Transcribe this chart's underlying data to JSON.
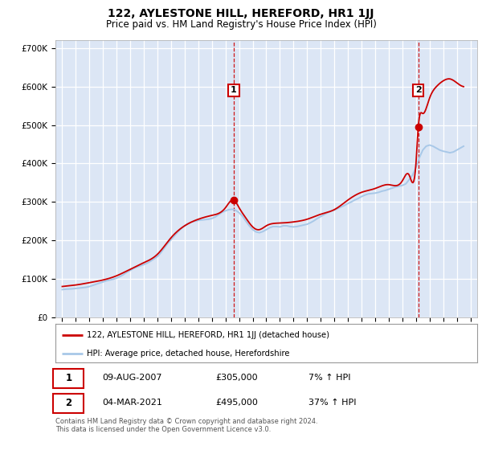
{
  "title": "122, AYLESTONE HILL, HEREFORD, HR1 1JJ",
  "subtitle": "Price paid vs. HM Land Registry's House Price Index (HPI)",
  "legend_label_red": "122, AYLESTONE HILL, HEREFORD, HR1 1JJ (detached house)",
  "legend_label_blue": "HPI: Average price, detached house, Herefordshire",
  "footnote": "Contains HM Land Registry data © Crown copyright and database right 2024.\nThis data is licensed under the Open Government Licence v3.0.",
  "sale1_label": "1",
  "sale1_date": "09-AUG-2007",
  "sale1_price": "£305,000",
  "sale1_hpi": "7% ↑ HPI",
  "sale2_label": "2",
  "sale2_date": "04-MAR-2021",
  "sale2_price": "£495,000",
  "sale2_hpi": "37% ↑ HPI",
  "sale1_x": 2007.6,
  "sale1_y": 305000,
  "sale2_x": 2021.17,
  "sale2_y": 495000,
  "ylim": [
    0,
    720000
  ],
  "xlim": [
    1994.5,
    2025.5
  ],
  "yticks": [
    0,
    100000,
    200000,
    300000,
    400000,
    500000,
    600000,
    700000
  ],
  "ytick_labels": [
    "£0",
    "£100K",
    "£200K",
    "£300K",
    "£400K",
    "£500K",
    "£600K",
    "£700K"
  ],
  "xticks": [
    1995,
    1996,
    1997,
    1998,
    1999,
    2000,
    2001,
    2002,
    2003,
    2004,
    2005,
    2006,
    2007,
    2008,
    2009,
    2010,
    2011,
    2012,
    2013,
    2014,
    2015,
    2016,
    2017,
    2018,
    2019,
    2020,
    2021,
    2022,
    2023,
    2024,
    2025
  ],
  "plot_bg_color": "#dce6f5",
  "red_color": "#cc0000",
  "blue_color": "#a8c8e8",
  "vline_color": "#cc0000",
  "marker_color": "#cc0000",
  "hpi_years": [
    1995.0,
    1995.25,
    1995.5,
    1995.75,
    1996.0,
    1996.25,
    1996.5,
    1996.75,
    1997.0,
    1997.25,
    1997.5,
    1997.75,
    1998.0,
    1998.25,
    1998.5,
    1998.75,
    1999.0,
    1999.25,
    1999.5,
    1999.75,
    2000.0,
    2000.25,
    2000.5,
    2000.75,
    2001.0,
    2001.25,
    2001.5,
    2001.75,
    2002.0,
    2002.25,
    2002.5,
    2002.75,
    2003.0,
    2003.25,
    2003.5,
    2003.75,
    2004.0,
    2004.25,
    2004.5,
    2004.75,
    2005.0,
    2005.25,
    2005.5,
    2005.75,
    2006.0,
    2006.25,
    2006.5,
    2006.75,
    2007.0,
    2007.25,
    2007.5,
    2007.75,
    2008.0,
    2008.25,
    2008.5,
    2008.75,
    2009.0,
    2009.25,
    2009.5,
    2009.75,
    2010.0,
    2010.25,
    2010.5,
    2010.75,
    2011.0,
    2011.25,
    2011.5,
    2011.75,
    2012.0,
    2012.25,
    2012.5,
    2012.75,
    2013.0,
    2013.25,
    2013.5,
    2013.75,
    2014.0,
    2014.25,
    2014.5,
    2014.75,
    2015.0,
    2015.25,
    2015.5,
    2015.75,
    2016.0,
    2016.25,
    2016.5,
    2016.75,
    2017.0,
    2017.25,
    2017.5,
    2017.75,
    2018.0,
    2018.25,
    2018.5,
    2018.75,
    2019.0,
    2019.25,
    2019.5,
    2019.75,
    2020.0,
    2020.25,
    2020.5,
    2020.75,
    2021.0,
    2021.25,
    2021.5,
    2021.75,
    2022.0,
    2022.25,
    2022.5,
    2022.75,
    2023.0,
    2023.25,
    2023.5,
    2023.75,
    2024.0,
    2024.25,
    2024.5
  ],
  "hpi_vals": [
    72000,
    73000,
    73500,
    74000,
    75000,
    76000,
    77000,
    78000,
    80000,
    83000,
    86000,
    89000,
    92000,
    95000,
    97000,
    99000,
    102000,
    106000,
    111000,
    117000,
    122000,
    127000,
    131000,
    134000,
    137000,
    141000,
    146000,
    152000,
    158000,
    168000,
    180000,
    192000,
    202000,
    212000,
    222000,
    231000,
    238000,
    244000,
    248000,
    250000,
    252000,
    253000,
    254000,
    255000,
    257000,
    261000,
    267000,
    273000,
    277000,
    280000,
    281000,
    278000,
    272000,
    263000,
    250000,
    238000,
    228000,
    222000,
    220000,
    223000,
    228000,
    233000,
    236000,
    236000,
    235000,
    238000,
    238000,
    236000,
    235000,
    236000,
    238000,
    240000,
    242000,
    246000,
    251000,
    257000,
    262000,
    267000,
    272000,
    276000,
    279000,
    283000,
    287000,
    291000,
    296000,
    300000,
    305000,
    309000,
    314000,
    318000,
    321000,
    322000,
    323000,
    325000,
    328000,
    330000,
    333000,
    336000,
    339000,
    341000,
    343000,
    347000,
    358000,
    370000,
    390000,
    415000,
    435000,
    445000,
    448000,
    445000,
    440000,
    435000,
    432000,
    430000,
    428000,
    430000,
    435000,
    440000,
    445000
  ],
  "red_anchors_x": [
    1995.0,
    1995.5,
    1996.0,
    1997.0,
    1998.0,
    1999.0,
    2000.0,
    2001.0,
    2002.0,
    2003.0,
    2004.0,
    2005.0,
    2006.0,
    2007.0,
    2007.6,
    2008.0,
    2008.5,
    2009.0,
    2009.5,
    2010.0,
    2011.0,
    2012.0,
    2013.0,
    2014.0,
    2015.0,
    2016.0,
    2017.0,
    2018.0,
    2019.0,
    2020.0,
    2020.5,
    2021.0,
    2021.17,
    2021.5,
    2022.0,
    2022.5,
    2023.0,
    2023.5,
    2024.0,
    2024.5
  ],
  "red_anchors_y": [
    80000,
    82000,
    84000,
    90000,
    97000,
    108000,
    125000,
    142000,
    164000,
    207000,
    238000,
    255000,
    265000,
    285000,
    305000,
    285000,
    258000,
    235000,
    228000,
    238000,
    245000,
    248000,
    255000,
    268000,
    280000,
    305000,
    325000,
    335000,
    345000,
    355000,
    370000,
    400000,
    495000,
    530000,
    570000,
    600000,
    615000,
    620000,
    610000,
    600000
  ]
}
